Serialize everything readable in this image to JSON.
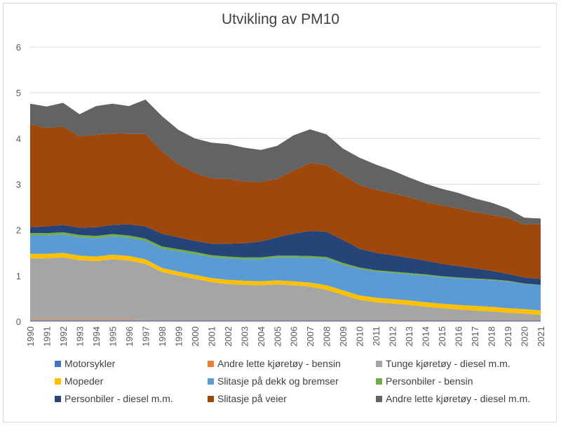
{
  "chart_data": {
    "type": "area",
    "stacked": true,
    "title": "Utvikling av PM10",
    "xlabel": "",
    "ylabel": "",
    "ylim": [
      0,
      6
    ],
    "yticks": [
      "0",
      "1",
      "2",
      "3",
      "4",
      "5",
      "6"
    ],
    "grid": true,
    "legend_position": "bottom",
    "x": [
      "1990",
      "1991",
      "1992",
      "1993",
      "1994",
      "1995",
      "1996",
      "1997",
      "1998",
      "1999",
      "2000",
      "2001",
      "2002",
      "2003",
      "2004",
      "2005",
      "2006",
      "2007",
      "2008",
      "2009",
      "2010",
      "2011",
      "2012",
      "2013",
      "2014",
      "2015",
      "2016",
      "2017",
      "2018",
      "2019",
      "2020",
      "2021"
    ],
    "series": [
      {
        "name": "Motorsykler",
        "color": "#4472c4",
        "values": [
          0.02,
          0.02,
          0.02,
          0.02,
          0.02,
          0.02,
          0.02,
          0.02,
          0.02,
          0.02,
          0.02,
          0.02,
          0.02,
          0.02,
          0.02,
          0.02,
          0.02,
          0.02,
          0.02,
          0.02,
          0.02,
          0.02,
          0.02,
          0.02,
          0.02,
          0.02,
          0.02,
          0.02,
          0.02,
          0.02,
          0.02,
          0.02
        ]
      },
      {
        "name": "Andre lette kjøretøy - bensin",
        "color": "#ed7d31",
        "values": [
          0.02,
          0.02,
          0.02,
          0.02,
          0.02,
          0.02,
          0.02,
          0.01,
          0.01,
          0.01,
          0.01,
          0.01,
          0.01,
          0.01,
          0.01,
          0.01,
          0.01,
          0.01,
          0.01,
          0.01,
          0.01,
          0.01,
          0.01,
          0.01,
          0.01,
          0.01,
          0.01,
          0.01,
          0.01,
          0.01,
          0.01,
          0.01
        ]
      },
      {
        "name": "Tunge kjøretøy - diesel m.m.",
        "color": "#a5a5a5",
        "values": [
          1.34,
          1.34,
          1.36,
          1.3,
          1.28,
          1.32,
          1.29,
          1.23,
          1.05,
          0.97,
          0.9,
          0.83,
          0.79,
          0.77,
          0.76,
          0.78,
          0.76,
          0.73,
          0.66,
          0.55,
          0.44,
          0.39,
          0.36,
          0.33,
          0.29,
          0.26,
          0.23,
          0.21,
          0.19,
          0.16,
          0.14,
          0.11
        ]
      },
      {
        "name": "Mopeder",
        "color": "#ffc000",
        "values": [
          0.1,
          0.1,
          0.1,
          0.1,
          0.1,
          0.1,
          0.1,
          0.1,
          0.09,
          0.09,
          0.09,
          0.09,
          0.09,
          0.09,
          0.09,
          0.09,
          0.09,
          0.09,
          0.1,
          0.1,
          0.1,
          0.1,
          0.1,
          0.1,
          0.1,
          0.1,
          0.1,
          0.1,
          0.1,
          0.1,
          0.1,
          0.1
        ]
      },
      {
        "name": "Slitasje på dekk og bremser",
        "color": "#5b9bd5",
        "values": [
          0.4,
          0.4,
          0.4,
          0.4,
          0.4,
          0.4,
          0.4,
          0.4,
          0.42,
          0.44,
          0.45,
          0.46,
          0.47,
          0.47,
          0.48,
          0.5,
          0.52,
          0.54,
          0.58,
          0.56,
          0.58,
          0.57,
          0.57,
          0.57,
          0.58,
          0.58,
          0.58,
          0.58,
          0.58,
          0.58,
          0.55,
          0.55
        ]
      },
      {
        "name": "Personbiler - bensin",
        "color": "#70ad47",
        "values": [
          0.05,
          0.05,
          0.05,
          0.05,
          0.05,
          0.05,
          0.05,
          0.05,
          0.05,
          0.05,
          0.05,
          0.04,
          0.04,
          0.04,
          0.04,
          0.04,
          0.04,
          0.04,
          0.04,
          0.04,
          0.03,
          0.03,
          0.03,
          0.03,
          0.03,
          0.02,
          0.02,
          0.02,
          0.02,
          0.02,
          0.01,
          0.01
        ]
      },
      {
        "name": "Personbiler - diesel m.m.",
        "color": "#264478",
        "values": [
          0.13,
          0.15,
          0.16,
          0.16,
          0.19,
          0.2,
          0.24,
          0.27,
          0.28,
          0.26,
          0.24,
          0.25,
          0.28,
          0.31,
          0.35,
          0.4,
          0.48,
          0.55,
          0.55,
          0.5,
          0.41,
          0.38,
          0.36,
          0.33,
          0.3,
          0.27,
          0.25,
          0.22,
          0.19,
          0.15,
          0.13,
          0.13
        ]
      },
      {
        "name": "Slitasje på veier",
        "color": "#9e480e",
        "values": [
          2.25,
          2.15,
          2.15,
          2.0,
          2.02,
          2.0,
          1.98,
          2.02,
          1.8,
          1.6,
          1.49,
          1.43,
          1.42,
          1.35,
          1.3,
          1.28,
          1.38,
          1.48,
          1.46,
          1.42,
          1.39,
          1.38,
          1.35,
          1.33,
          1.28,
          1.28,
          1.26,
          1.23,
          1.22,
          1.23,
          1.16,
          1.2
        ]
      },
      {
        "name": "Andre lette kjøretøy - diesel m.m.",
        "color": "#636363",
        "values": [
          0.45,
          0.47,
          0.52,
          0.48,
          0.63,
          0.65,
          0.61,
          0.75,
          0.77,
          0.75,
          0.75,
          0.78,
          0.76,
          0.74,
          0.7,
          0.72,
          0.77,
          0.74,
          0.67,
          0.58,
          0.6,
          0.55,
          0.5,
          0.43,
          0.4,
          0.36,
          0.34,
          0.3,
          0.27,
          0.2,
          0.15,
          0.12
        ]
      }
    ]
  }
}
